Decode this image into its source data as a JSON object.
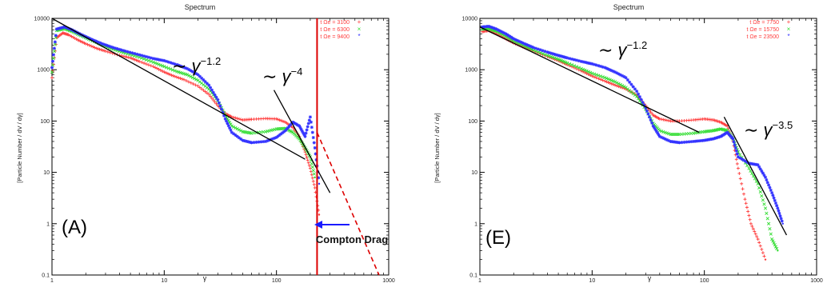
{
  "chart_data": [
    {
      "type": "scatter",
      "panel_label": "(A)",
      "title": "Spectrum",
      "xlabel": "γ",
      "ylabel": "[Particle Number / dV / dγ]",
      "xscale": "log",
      "yscale": "log",
      "xlim": [
        1,
        1000
      ],
      "ylim": [
        0.1,
        10000
      ],
      "x_ticks": [
        "1",
        "10",
        "100",
        "1000"
      ],
      "y_ticks": [
        "0.1",
        "1",
        "10",
        "100",
        "1000",
        "10000"
      ],
      "grid": false,
      "legend_position": "top-right",
      "series": [
        {
          "name": "t Ωe = 3100",
          "color": "#ff3b3b",
          "marker": "+",
          "points": [
            [
              1.0,
              700
            ],
            [
              1.1,
              4200
            ],
            [
              1.25,
              5200
            ],
            [
              1.4,
              4800
            ],
            [
              1.7,
              3800
            ],
            [
              2,
              3200
            ],
            [
              2.5,
              2600
            ],
            [
              3,
              2300
            ],
            [
              4,
              1900
            ],
            [
              5,
              1700
            ],
            [
              6,
              1450
            ],
            [
              8,
              1150
            ],
            [
              10,
              900
            ],
            [
              12,
              760
            ],
            [
              15,
              640
            ],
            [
              20,
              480
            ],
            [
              25,
              330
            ],
            [
              30,
              200
            ],
            [
              35,
              140
            ],
            [
              40,
              120
            ],
            [
              50,
              105
            ],
            [
              60,
              108
            ],
            [
              80,
              112
            ],
            [
              100,
              110
            ],
            [
              120,
              95
            ],
            [
              140,
              75
            ],
            [
              160,
              50
            ],
            [
              180,
              25
            ],
            [
              200,
              12
            ],
            [
              220,
              5
            ],
            [
              240,
              1.5
            ]
          ]
        },
        {
          "name": "t Ωe = 6300",
          "color": "#33dd33",
          "marker": "×",
          "points": [
            [
              1.0,
              900
            ],
            [
              1.1,
              5800
            ],
            [
              1.3,
              6300
            ],
            [
              1.5,
              5600
            ],
            [
              1.8,
              4600
            ],
            [
              2.2,
              3800
            ],
            [
              2.8,
              3000
            ],
            [
              3.5,
              2500
            ],
            [
              4.5,
              2100
            ],
            [
              6,
              1750
            ],
            [
              8,
              1400
            ],
            [
              10,
              1150
            ],
            [
              13,
              920
            ],
            [
              16,
              800
            ],
            [
              20,
              620
            ],
            [
              25,
              420
            ],
            [
              30,
              250
            ],
            [
              35,
              130
            ],
            [
              40,
              80
            ],
            [
              50,
              62
            ],
            [
              60,
              58
            ],
            [
              80,
              62
            ],
            [
              100,
              70
            ],
            [
              120,
              72
            ],
            [
              140,
              60
            ],
            [
              160,
              45
            ],
            [
              180,
              30
            ],
            [
              200,
              20
            ],
            [
              220,
              8
            ]
          ]
        },
        {
          "name": "t Ωe = 9400",
          "color": "#3333ff",
          "marker": "*",
          "points": [
            [
              1.0,
              1100
            ],
            [
              1.1,
              6200
            ],
            [
              1.3,
              6800
            ],
            [
              1.5,
              6000
            ],
            [
              1.8,
              4900
            ],
            [
              2.2,
              4000
            ],
            [
              2.8,
              3200
            ],
            [
              3.5,
              2700
            ],
            [
              4.5,
              2300
            ],
            [
              6,
              1950
            ],
            [
              8,
              1650
            ],
            [
              10,
              1500
            ],
            [
              13,
              1250
            ],
            [
              16,
              1050
            ],
            [
              20,
              800
            ],
            [
              25,
              500
            ],
            [
              30,
              260
            ],
            [
              35,
              110
            ],
            [
              40,
              60
            ],
            [
              50,
              42
            ],
            [
              60,
              38
            ],
            [
              80,
              40
            ],
            [
              100,
              48
            ],
            [
              120,
              65
            ],
            [
              140,
              95
            ],
            [
              160,
              80
            ],
            [
              180,
              50
            ],
            [
              200,
              120
            ],
            [
              220,
              30
            ],
            [
              240,
              6
            ]
          ]
        }
      ],
      "fit_lines": [
        {
          "label": "∼ γ^−1.2",
          "from": [
            1,
            10000
          ],
          "to": [
            180,
            18
          ]
        },
        {
          "label": "∼ γ^−4",
          "from": [
            95,
            400
          ],
          "to": [
            300,
            4
          ]
        }
      ],
      "annotations": [
        {
          "text": "Compton Drag",
          "type": "vertical-line",
          "x": 230,
          "color": "#dd0000"
        },
        {
          "text": "",
          "type": "dashed-extrapolation",
          "from": [
            230,
            60
          ],
          "to": [
            820,
            0.1
          ],
          "color": "#dd0000"
        }
      ],
      "legend_label_color": "#ff3b3b"
    },
    {
      "type": "scatter",
      "panel_label": "(E)",
      "title": "Spectrum",
      "xlabel": "γ",
      "ylabel": "[Particle Number / dV / dγ]",
      "xscale": "log",
      "yscale": "log",
      "xlim": [
        1,
        1000
      ],
      "ylim": [
        0.1,
        10000
      ],
      "x_ticks": [
        "1",
        "10",
        "100",
        "1000"
      ],
      "y_ticks": [
        "0.1",
        "1",
        "10",
        "100",
        "1000",
        "10000"
      ],
      "grid": false,
      "legend_position": "top-right",
      "series": [
        {
          "name": "t Ωe = 7750",
          "color": "#ff3b3b",
          "marker": "+",
          "points": [
            [
              1.05,
              5500
            ],
            [
              1.2,
              5800
            ],
            [
              1.4,
              5000
            ],
            [
              1.7,
              4000
            ],
            [
              2,
              3300
            ],
            [
              2.5,
              2700
            ],
            [
              3,
              2300
            ],
            [
              4,
              1800
            ],
            [
              5,
              1500
            ],
            [
              6,
              1250
            ],
            [
              8,
              950
            ],
            [
              10,
              750
            ],
            [
              13,
              600
            ],
            [
              16,
              500
            ],
            [
              20,
              420
            ],
            [
              25,
              320
            ],
            [
              30,
              200
            ],
            [
              35,
              130
            ],
            [
              40,
              110
            ],
            [
              50,
              100
            ],
            [
              60,
              100
            ],
            [
              80,
              105
            ],
            [
              100,
              110
            ],
            [
              120,
              105
            ],
            [
              140,
              95
            ],
            [
              160,
              80
            ],
            [
              180,
              40
            ],
            [
              200,
              12
            ],
            [
              230,
              3
            ],
            [
              260,
              1
            ],
            [
              300,
              0.5
            ],
            [
              350,
              0.2
            ]
          ]
        },
        {
          "name": "t Ωe = 15750",
          "color": "#33dd33",
          "marker": "×",
          "points": [
            [
              1.05,
              6200
            ],
            [
              1.2,
              6300
            ],
            [
              1.4,
              5600
            ],
            [
              1.7,
              4500
            ],
            [
              2,
              3600
            ],
            [
              2.5,
              2900
            ],
            [
              3,
              2400
            ],
            [
              4,
              1900
            ],
            [
              5,
              1600
            ],
            [
              6,
              1350
            ],
            [
              8,
              1050
            ],
            [
              10,
              850
            ],
            [
              13,
              700
            ],
            [
              16,
              580
            ],
            [
              20,
              450
            ],
            [
              25,
              300
            ],
            [
              30,
              170
            ],
            [
              35,
              90
            ],
            [
              40,
              65
            ],
            [
              50,
              55
            ],
            [
              60,
              55
            ],
            [
              80,
              58
            ],
            [
              100,
              62
            ],
            [
              120,
              65
            ],
            [
              140,
              70
            ],
            [
              160,
              65
            ],
            [
              180,
              45
            ],
            [
              200,
              25
            ],
            [
              250,
              12
            ],
            [
              300,
              6
            ],
            [
              350,
              2
            ],
            [
              400,
              0.5
            ],
            [
              450,
              0.3
            ]
          ]
        },
        {
          "name": "t Ωe = 23500",
          "color": "#3333ff",
          "marker": "*",
          "points": [
            [
              1.05,
              6800
            ],
            [
              1.2,
              7000
            ],
            [
              1.4,
              6200
            ],
            [
              1.7,
              5000
            ],
            [
              2,
              4000
            ],
            [
              2.5,
              3200
            ],
            [
              3,
              2700
            ],
            [
              4,
              2200
            ],
            [
              5,
              1900
            ],
            [
              6,
              1700
            ],
            [
              8,
              1450
            ],
            [
              10,
              1300
            ],
            [
              13,
              1100
            ],
            [
              16,
              900
            ],
            [
              20,
              700
            ],
            [
              25,
              380
            ],
            [
              30,
              180
            ],
            [
              35,
              80
            ],
            [
              40,
              50
            ],
            [
              50,
              40
            ],
            [
              60,
              38
            ],
            [
              80,
              40
            ],
            [
              100,
              42
            ],
            [
              120,
              45
            ],
            [
              140,
              50
            ],
            [
              160,
              60
            ],
            [
              180,
              45
            ],
            [
              200,
              20
            ],
            [
              250,
              15
            ],
            [
              300,
              14
            ],
            [
              350,
              8
            ],
            [
              400,
              4
            ],
            [
              450,
              2
            ],
            [
              500,
              1
            ]
          ]
        }
      ],
      "fit_lines": [
        {
          "label": "∼ γ^−1.2",
          "from": [
            1,
            6800
          ],
          "to": [
            90,
            60
          ]
        },
        {
          "label": "∼ γ^−3.5",
          "from": [
            150,
            120
          ],
          "to": [
            540,
            0.6
          ]
        }
      ],
      "annotations": [],
      "legend_label_color": "#ff3b3b"
    }
  ]
}
